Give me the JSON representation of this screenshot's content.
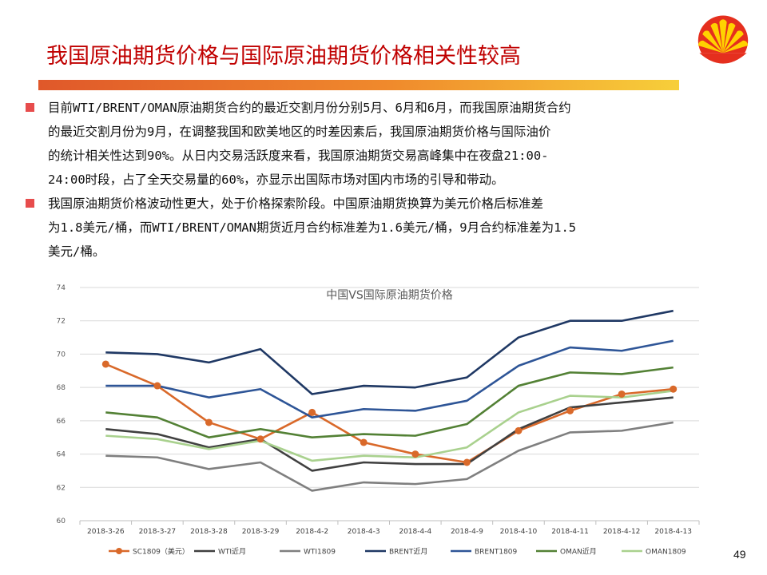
{
  "slide": {
    "title": "我国原油期货价格与国际原油期货价格相关性较高",
    "page_number": "49",
    "accent_color": "#c00000",
    "bullet_color": "#e74c4c"
  },
  "bullets": [
    {
      "lines": [
        "目前WTI/BRENT/OMAN原油期货合约的最近交割月份分别5月、6月和6月，而我国原油期货合约",
        "的最近交割月份为9月，在调整我国和欧美地区的时差因素后，我国原油期货价格与国际油价",
        "的统计相关性达到90%。从日内交易活跃度来看，我国原油期货交易高峰集中在夜盘21:00-",
        "24:00时段，占了全天交易量的60%，亦显示出国际市场对国内市场的引导和带动。"
      ]
    },
    {
      "lines": [
        "我国原油期货价格波动性更大，处于价格探索阶段。中国原油期货换算为美元价格后标准差",
        "为1.8美元/桶，而WTI/BRENT/OMAN期货近月合约标准差为1.6美元/桶，9月合约标准差为1.5",
        "美元/桶。"
      ]
    }
  ],
  "chart_data": {
    "type": "line",
    "title": "中国VS国际原油期货价格",
    "xlabel": "",
    "ylabel": "",
    "ylim": [
      60,
      74
    ],
    "yticks": [
      60,
      62,
      64,
      66,
      68,
      70,
      72,
      74
    ],
    "grid": true,
    "legend_position": "bottom",
    "categories": [
      "2018-3-26",
      "2018-3-27",
      "2018-3-28",
      "2018-3-29",
      "2018-4-2",
      "2018-4-3",
      "2018-4-4",
      "2018-4-9",
      "2018-4-10",
      "2018-4-11",
      "2018-4-12",
      "2018-4-13"
    ],
    "series": [
      {
        "name": "SC1809（美元）",
        "color": "#d9692a",
        "markers": true,
        "values": [
          69.4,
          68.1,
          65.9,
          64.9,
          66.5,
          64.7,
          64.0,
          63.5,
          65.4,
          66.6,
          67.6,
          67.9
        ]
      },
      {
        "name": "WTI近月",
        "color": "#404040",
        "markers": false,
        "values": [
          65.5,
          65.2,
          64.4,
          64.9,
          63.0,
          63.5,
          63.4,
          63.4,
          65.5,
          66.8,
          67.1,
          67.4
        ]
      },
      {
        "name": "WTI1809",
        "color": "#7f7f7f",
        "markers": false,
        "values": [
          63.9,
          63.8,
          63.1,
          63.5,
          61.8,
          62.3,
          62.2,
          62.5,
          64.2,
          65.3,
          65.4,
          65.9
        ]
      },
      {
        "name": "BRENT近月",
        "color": "#1f3864",
        "markers": false,
        "values": [
          70.1,
          70.0,
          69.5,
          70.3,
          67.6,
          68.1,
          68.0,
          68.6,
          71.0,
          72.0,
          72.0,
          72.6
        ]
      },
      {
        "name": "BRENT1809",
        "color": "#2e5597",
        "markers": false,
        "values": [
          68.1,
          68.1,
          67.4,
          67.9,
          66.2,
          66.7,
          66.6,
          67.2,
          69.3,
          70.4,
          70.2,
          70.8
        ]
      },
      {
        "name": "OMAN近月",
        "color": "#538135",
        "markers": false,
        "values": [
          66.5,
          66.2,
          65.0,
          65.5,
          65.0,
          65.2,
          65.1,
          65.8,
          68.1,
          68.9,
          68.8,
          69.2
        ]
      },
      {
        "name": "OMAN1809",
        "color": "#a9d18e",
        "markers": false,
        "values": [
          65.1,
          64.9,
          64.3,
          64.8,
          63.6,
          63.9,
          63.8,
          64.4,
          66.5,
          67.5,
          67.4,
          67.8
        ]
      }
    ]
  }
}
